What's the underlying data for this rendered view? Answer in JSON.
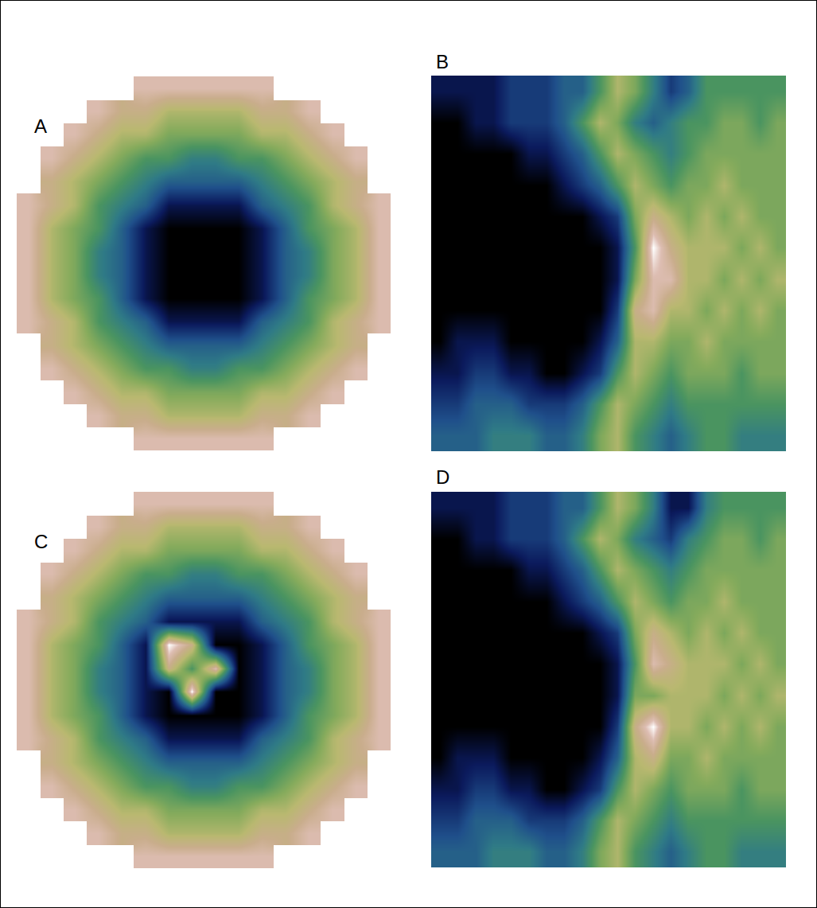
{
  "chart_data": [
    {
      "type": "heatmap",
      "label": "A",
      "tick_labels": false,
      "zlim": [
        0,
        10
      ],
      "z": [
        [
          null,
          null,
          null,
          null,
          null,
          9,
          9,
          9,
          9,
          9,
          9,
          null,
          null,
          null,
          null,
          null
        ],
        [
          null,
          null,
          null,
          9,
          8,
          8,
          7,
          7,
          7,
          7,
          8,
          8,
          9,
          null,
          null,
          null
        ],
        [
          null,
          null,
          9,
          8,
          7,
          7,
          6,
          6,
          6,
          6,
          7,
          7,
          8,
          9,
          null,
          null
        ],
        [
          null,
          9,
          8,
          7,
          6,
          5,
          5,
          4,
          4,
          5,
          5,
          6,
          7,
          8,
          9,
          null
        ],
        [
          null,
          8,
          7,
          6,
          5,
          4,
          3,
          3,
          3,
          3,
          4,
          5,
          6,
          7,
          8,
          null
        ],
        [
          9,
          8,
          7,
          5,
          4,
          3,
          1,
          1,
          1,
          1,
          3,
          4,
          5,
          7,
          8,
          9
        ],
        [
          9,
          7,
          6,
          5,
          3,
          1,
          0,
          0,
          0,
          0,
          1,
          3,
          5,
          6,
          7,
          9
        ],
        [
          9,
          7,
          6,
          4,
          3,
          1,
          0,
          0,
          0,
          0,
          1,
          3,
          4,
          6,
          7,
          9
        ],
        [
          9,
          7,
          6,
          4,
          3,
          1,
          0,
          0,
          0,
          0,
          1,
          3,
          4,
          6,
          7,
          9
        ],
        [
          9,
          7,
          6,
          5,
          3,
          1,
          0,
          0,
          0,
          0,
          1,
          3,
          5,
          6,
          7,
          9
        ],
        [
          9,
          8,
          7,
          5,
          4,
          3,
          1,
          1,
          1,
          1,
          3,
          4,
          5,
          7,
          8,
          9
        ],
        [
          null,
          8,
          7,
          6,
          5,
          4,
          3,
          3,
          3,
          3,
          4,
          5,
          6,
          7,
          8,
          null
        ],
        [
          null,
          9,
          8,
          7,
          6,
          5,
          5,
          4,
          4,
          5,
          5,
          6,
          7,
          8,
          9,
          null
        ],
        [
          null,
          null,
          9,
          8,
          7,
          7,
          6,
          6,
          6,
          6,
          7,
          7,
          8,
          9,
          null,
          null
        ],
        [
          null,
          null,
          null,
          9,
          8,
          8,
          7,
          7,
          7,
          7,
          8,
          8,
          9,
          null,
          null,
          null
        ],
        [
          null,
          null,
          null,
          null,
          null,
          9,
          9,
          9,
          9,
          9,
          9,
          null,
          null,
          null,
          null,
          null
        ]
      ]
    },
    {
      "type": "heatmap",
      "label": "B",
      "tick_labels": false,
      "zlim": [
        0,
        10
      ],
      "z": [
        [
          1,
          1,
          1,
          1,
          2,
          2,
          2,
          3,
          3,
          5,
          7,
          6,
          4,
          2,
          3,
          5,
          5,
          5,
          5,
          5
        ],
        [
          0,
          0,
          1,
          1,
          2,
          2,
          2,
          3,
          5,
          7,
          6,
          4,
          3,
          4,
          5,
          5,
          6,
          6,
          5,
          6
        ],
        [
          0,
          0,
          0,
          0,
          0,
          1,
          1,
          2,
          3,
          5,
          7,
          6,
          5,
          4,
          5,
          6,
          6,
          6,
          6,
          6
        ],
        [
          0,
          0,
          0,
          0,
          0,
          0,
          0,
          1,
          2,
          3,
          5,
          7,
          6,
          5,
          6,
          6,
          7,
          6,
          6,
          6
        ],
        [
          0,
          0,
          0,
          0,
          0,
          0,
          0,
          0,
          0,
          1,
          2,
          6,
          8,
          7,
          6,
          7,
          6,
          7,
          6,
          6
        ],
        [
          0,
          0,
          0,
          0,
          0,
          0,
          0,
          0,
          0,
          0,
          1,
          5,
          10,
          8,
          7,
          7,
          7,
          6,
          7,
          6
        ],
        [
          0,
          0,
          0,
          0,
          0,
          0,
          0,
          0,
          0,
          0,
          1,
          6,
          9,
          9,
          7,
          7,
          6,
          7,
          6,
          7
        ],
        [
          0,
          0,
          0,
          0,
          0,
          0,
          0,
          0,
          0,
          0,
          2,
          8,
          9,
          7,
          7,
          6,
          7,
          6,
          7,
          6
        ],
        [
          0,
          1,
          1,
          1,
          0,
          0,
          0,
          0,
          0,
          1,
          3,
          7,
          7,
          6,
          6,
          7,
          6,
          6,
          6,
          6
        ],
        [
          1,
          1,
          2,
          2,
          1,
          1,
          0,
          0,
          1,
          2,
          5,
          7,
          6,
          5,
          6,
          6,
          6,
          5,
          6,
          6
        ],
        [
          2,
          2,
          3,
          3,
          3,
          2,
          2,
          2,
          3,
          5,
          7,
          6,
          5,
          4,
          5,
          5,
          5,
          5,
          5,
          5
        ],
        [
          3,
          3,
          3,
          4,
          4,
          4,
          3,
          3,
          4,
          6,
          7,
          5,
          4,
          3,
          4,
          5,
          5,
          4,
          4,
          4
        ]
      ]
    },
    {
      "type": "heatmap",
      "label": "C",
      "tick_labels": false,
      "zlim": [
        0,
        10
      ],
      "z": [
        [
          null,
          null,
          null,
          null,
          null,
          9,
          9,
          9,
          9,
          9,
          9,
          null,
          null,
          null,
          null,
          null
        ],
        [
          null,
          null,
          null,
          9,
          8,
          8,
          7,
          7,
          7,
          7,
          8,
          8,
          9,
          null,
          null,
          null
        ],
        [
          null,
          null,
          9,
          8,
          7,
          7,
          6,
          6,
          6,
          6,
          7,
          7,
          8,
          9,
          null,
          null
        ],
        [
          null,
          9,
          8,
          7,
          6,
          5,
          5,
          4,
          4,
          5,
          5,
          6,
          7,
          8,
          9,
          null
        ],
        [
          null,
          8,
          7,
          6,
          5,
          4,
          3,
          3,
          3,
          3,
          4,
          5,
          6,
          7,
          8,
          null
        ],
        [
          9,
          8,
          7,
          5,
          4,
          3,
          1,
          1,
          1,
          1,
          3,
          4,
          5,
          7,
          8,
          9
        ],
        [
          9,
          7,
          6,
          5,
          3,
          1,
          10,
          8,
          0,
          0,
          1,
          3,
          5,
          6,
          7,
          9
        ],
        [
          9,
          7,
          6,
          4,
          3,
          1,
          8,
          5,
          9,
          0,
          1,
          3,
          4,
          6,
          7,
          9
        ],
        [
          9,
          7,
          6,
          4,
          3,
          1,
          0,
          10,
          0,
          0,
          1,
          3,
          4,
          6,
          7,
          9
        ],
        [
          9,
          7,
          6,
          5,
          3,
          1,
          0,
          0,
          0,
          0,
          1,
          3,
          5,
          6,
          7,
          9
        ],
        [
          9,
          8,
          7,
          5,
          4,
          3,
          1,
          1,
          1,
          1,
          3,
          4,
          5,
          7,
          8,
          9
        ],
        [
          null,
          8,
          7,
          6,
          5,
          4,
          3,
          3,
          3,
          3,
          4,
          5,
          6,
          7,
          8,
          null
        ],
        [
          null,
          9,
          8,
          7,
          6,
          5,
          5,
          4,
          4,
          5,
          5,
          6,
          7,
          8,
          9,
          null
        ],
        [
          null,
          null,
          9,
          8,
          7,
          7,
          6,
          6,
          6,
          6,
          7,
          7,
          8,
          9,
          null,
          null
        ],
        [
          null,
          null,
          null,
          9,
          8,
          8,
          7,
          7,
          7,
          7,
          8,
          8,
          9,
          null,
          null,
          null
        ],
        [
          null,
          null,
          null,
          null,
          null,
          9,
          9,
          9,
          9,
          9,
          9,
          null,
          null,
          null,
          null,
          null
        ]
      ]
    },
    {
      "type": "heatmap",
      "label": "D",
      "tick_labels": false,
      "zlim": [
        0,
        10
      ],
      "z": [
        [
          1,
          1,
          1,
          1,
          2,
          2,
          2,
          3,
          3,
          5,
          7,
          6,
          4,
          1,
          1,
          4,
          5,
          5,
          5,
          5
        ],
        [
          0,
          0,
          1,
          1,
          2,
          2,
          2,
          3,
          5,
          7,
          6,
          4,
          3,
          2,
          4,
          5,
          6,
          6,
          5,
          6
        ],
        [
          0,
          0,
          0,
          0,
          0,
          1,
          1,
          2,
          3,
          5,
          7,
          6,
          5,
          4,
          5,
          6,
          6,
          6,
          6,
          6
        ],
        [
          0,
          0,
          0,
          0,
          0,
          0,
          0,
          1,
          2,
          3,
          5,
          7,
          6,
          5,
          6,
          6,
          7,
          6,
          6,
          6
        ],
        [
          0,
          0,
          0,
          0,
          0,
          0,
          0,
          0,
          0,
          1,
          2,
          6,
          8,
          7,
          6,
          7,
          6,
          7,
          6,
          6
        ],
        [
          0,
          0,
          0,
          0,
          0,
          0,
          0,
          0,
          0,
          0,
          1,
          5,
          9,
          8,
          7,
          7,
          7,
          6,
          7,
          6
        ],
        [
          0,
          0,
          0,
          0,
          0,
          0,
          0,
          0,
          0,
          0,
          1,
          6,
          6,
          7,
          7,
          7,
          6,
          7,
          6,
          7
        ],
        [
          0,
          0,
          0,
          0,
          0,
          0,
          0,
          0,
          0,
          0,
          2,
          8,
          10,
          7,
          7,
          6,
          7,
          6,
          7,
          6
        ],
        [
          0,
          1,
          1,
          1,
          0,
          0,
          0,
          0,
          0,
          1,
          3,
          7,
          8,
          6,
          6,
          7,
          6,
          6,
          6,
          6
        ],
        [
          1,
          1,
          2,
          2,
          1,
          1,
          0,
          0,
          1,
          2,
          5,
          7,
          6,
          5,
          6,
          6,
          6,
          5,
          6,
          6
        ],
        [
          2,
          2,
          3,
          3,
          3,
          2,
          2,
          2,
          3,
          5,
          7,
          6,
          5,
          4,
          5,
          5,
          5,
          5,
          5,
          5
        ],
        [
          3,
          3,
          3,
          4,
          4,
          4,
          3,
          3,
          4,
          6,
          7,
          5,
          4,
          3,
          4,
          5,
          5,
          4,
          4,
          4
        ]
      ]
    }
  ]
}
